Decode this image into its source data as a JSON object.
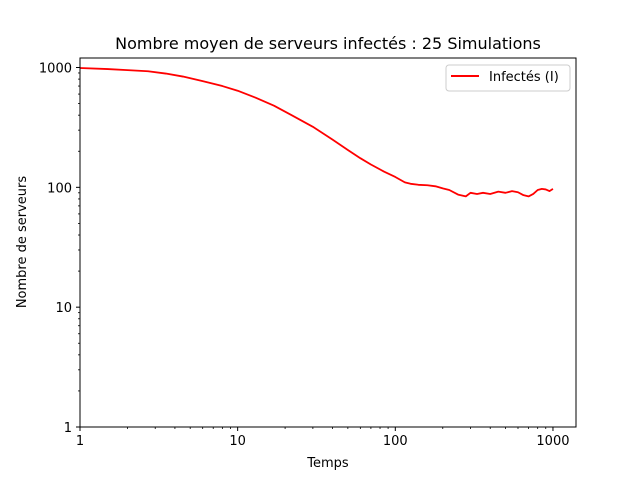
{
  "chart_data": {
    "type": "line",
    "title": "Nombre moyen de serveurs infectés : 25 Simulations",
    "xlabel": "Temps",
    "ylabel": "Nombre de serveurs",
    "xscale": "log",
    "yscale": "log",
    "xlim": [
      1,
      1400
    ],
    "ylim": [
      1,
      1200
    ],
    "xticks": [
      1,
      10,
      100,
      1000
    ],
    "xtick_labels": [
      "1",
      "10",
      "100",
      "1000"
    ],
    "yticks": [
      1,
      10,
      100,
      1000
    ],
    "ytick_labels": [
      "1",
      "10",
      "100",
      "1000"
    ],
    "grid": false,
    "legend": "top-right",
    "series": [
      {
        "name": "Infectés (I)",
        "color": "#ff0000",
        "x": [
          1,
          1.5,
          2,
          2.7,
          3.5,
          4.5,
          6,
          8,
          10,
          13,
          17,
          22,
          30,
          40,
          50,
          60,
          70,
          85,
          100,
          115,
          125,
          140,
          160,
          180,
          200,
          220,
          250,
          280,
          300,
          330,
          360,
          400,
          450,
          500,
          550,
          600,
          650,
          700,
          750,
          800,
          850,
          900,
          950,
          1000
        ],
        "values": [
          990,
          970,
          950,
          930,
          890,
          840,
          770,
          700,
          640,
          560,
          480,
          400,
          320,
          250,
          205,
          175,
          155,
          135,
          122,
          110,
          107,
          105,
          104,
          102,
          98,
          95,
          87,
          84,
          90,
          88,
          90,
          88,
          92,
          90,
          93,
          91,
          86,
          84,
          88,
          95,
          97,
          96,
          93,
          97
        ]
      }
    ]
  }
}
